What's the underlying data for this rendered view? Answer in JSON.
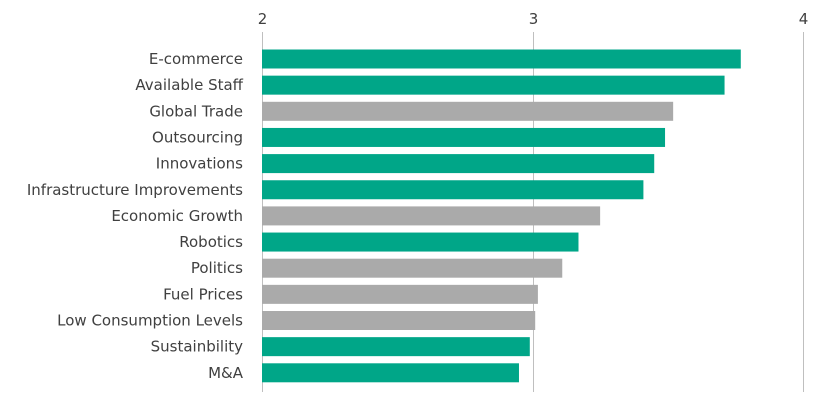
{
  "chart_data": {
    "type": "bar",
    "orientation": "horizontal",
    "title": "",
    "xlabel": "",
    "ylabel": "",
    "xlim": [
      2,
      4
    ],
    "xticks": [
      "2",
      "3",
      "4"
    ],
    "xtick_values": [
      2,
      3,
      4
    ],
    "axis_position": "top",
    "grid": true,
    "categories": [
      "E-commerce",
      "Available Staff",
      "Global Trade",
      "Outsourcing",
      "Innovations",
      "Infrastructure Improvements",
      "Economic Growth",
      "Robotics",
      "Politics",
      "Fuel Prices",
      "Low Consumption Levels",
      "Sustainbility",
      "M&A"
    ],
    "values": [
      3.77,
      3.71,
      3.52,
      3.49,
      3.45,
      3.41,
      3.25,
      3.17,
      3.11,
      3.02,
      3.01,
      2.99,
      2.95
    ],
    "bar_groups": [
      "green",
      "green",
      "grey",
      "green",
      "green",
      "green",
      "grey",
      "green",
      "grey",
      "grey",
      "grey",
      "green",
      "green"
    ],
    "colors": {
      "green": "#00a688",
      "grey": "#aaaaaa",
      "gridline": "#bfbfbf",
      "text": "#404040"
    }
  }
}
